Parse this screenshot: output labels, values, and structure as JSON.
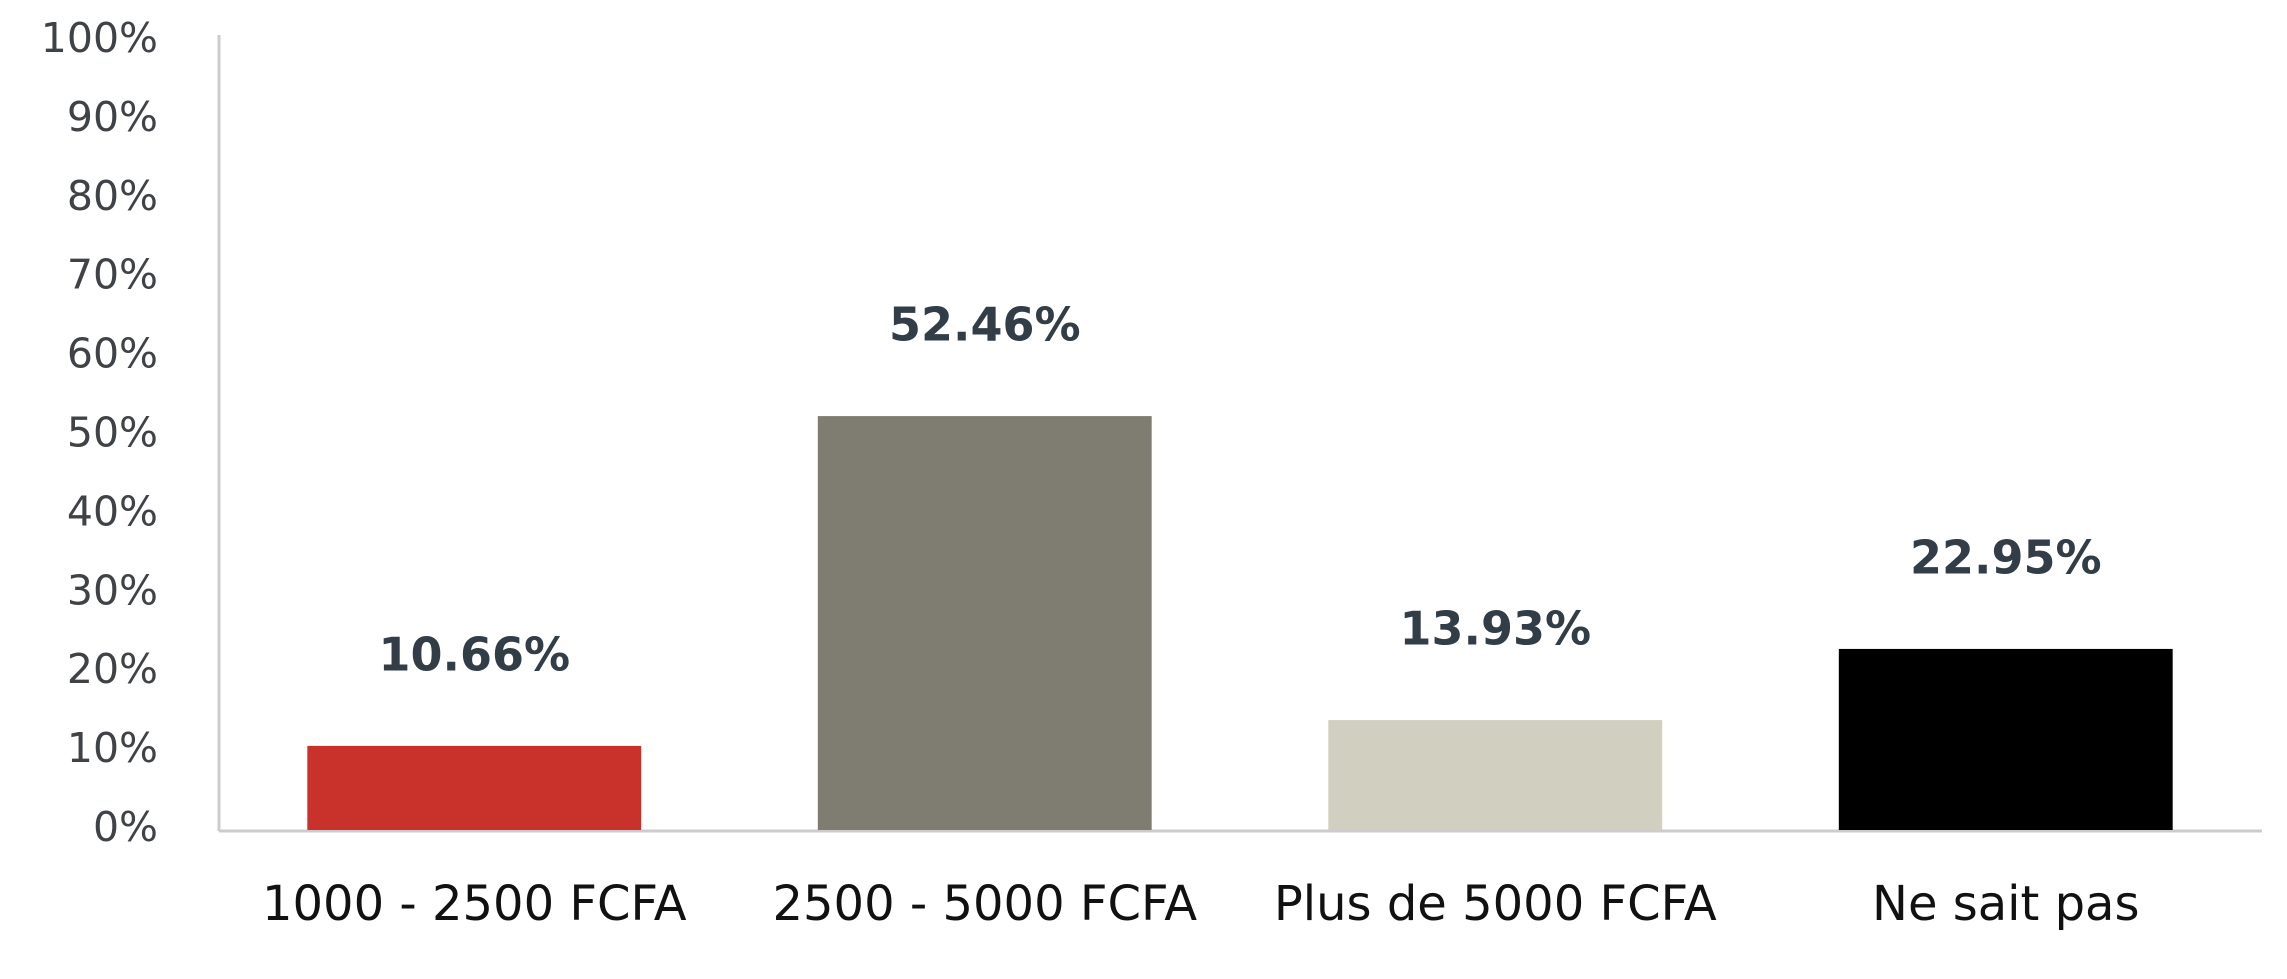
{
  "chart_data": {
    "type": "bar",
    "categories": [
      "1000 - 2500 FCFA",
      "2500 - 5000 FCFA",
      "Plus de 5000 FCFA",
      "Ne sait pas"
    ],
    "values": [
      10.66,
      52.46,
      13.93,
      22.95
    ],
    "value_labels": [
      "10.66%",
      "52.46%",
      "13.93%",
      "22.95%"
    ],
    "colors": [
      "#c8322b",
      "#7f7d71",
      "#d1cfbf",
      "#000000"
    ],
    "ylim": [
      0,
      100
    ],
    "yticks": [
      {
        "value": 0,
        "label": "0%"
      },
      {
        "value": 10,
        "label": "10%"
      },
      {
        "value": 20,
        "label": "20%"
      },
      {
        "value": 30,
        "label": "30%"
      },
      {
        "value": 40,
        "label": "40%"
      },
      {
        "value": 50,
        "label": "50%"
      },
      {
        "value": 60,
        "label": "60%"
      },
      {
        "value": 70,
        "label": "70%"
      },
      {
        "value": 80,
        "label": "80%"
      },
      {
        "value": 90,
        "label": "90%"
      },
      {
        "value": 100,
        "label": "100%"
      }
    ],
    "grid": false
  }
}
